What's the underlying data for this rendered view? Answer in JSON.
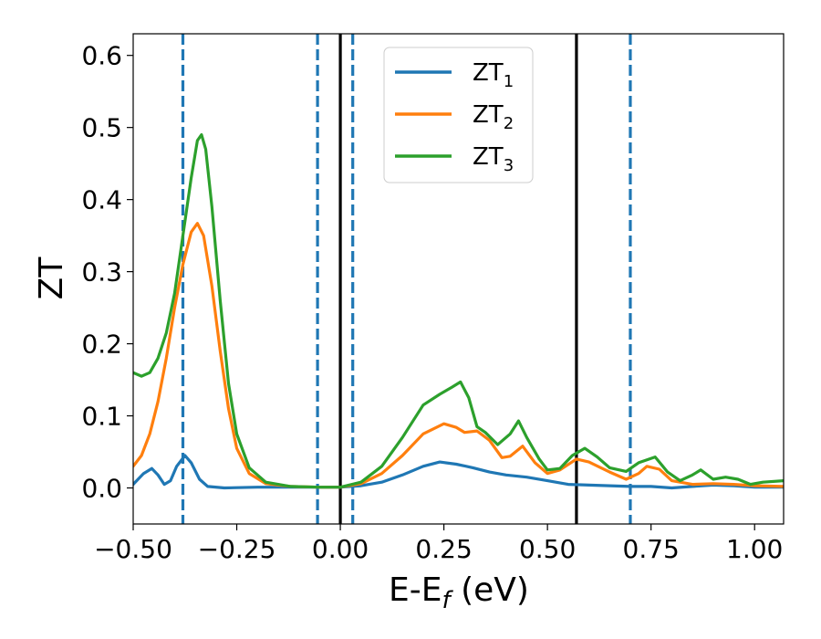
{
  "chart_data": {
    "type": "line",
    "xlabel": "E-E",
    "xlabel_sub": "f",
    "xlabel_unit": " (eV)",
    "ylabel": "ZT",
    "xlim": [
      -0.5,
      1.07
    ],
    "ylim": [
      -0.05,
      0.63
    ],
    "xticks": [
      -0.5,
      -0.25,
      0.0,
      0.25,
      0.5,
      0.75,
      1.0
    ],
    "xtick_labels": [
      "−0.50",
      "−0.25",
      "0.00",
      "0.25",
      "0.50",
      "0.75",
      "1.00"
    ],
    "yticks": [
      0.0,
      0.1,
      0.2,
      0.3,
      0.4,
      0.5,
      0.6
    ],
    "ytick_labels": [
      "0.0",
      "0.1",
      "0.2",
      "0.3",
      "0.4",
      "0.5",
      "0.6"
    ],
    "grid": false,
    "legend_position": "top-center",
    "vlines": [
      {
        "x": -0.38,
        "style": "dashed",
        "color": "#1f77b4"
      },
      {
        "x": -0.055,
        "style": "dashed",
        "color": "#1f77b4"
      },
      {
        "x": 0.03,
        "style": "dashed",
        "color": "#1f77b4"
      },
      {
        "x": 0.7,
        "style": "dashed",
        "color": "#1f77b4"
      },
      {
        "x": 0.0,
        "style": "solid",
        "color": "#000000"
      },
      {
        "x": 0.57,
        "style": "solid",
        "color": "#000000"
      }
    ],
    "series": [
      {
        "name": "ZT",
        "sub": "1",
        "color": "#1f77b4",
        "points": [
          [
            -0.5,
            0.005
          ],
          [
            -0.475,
            0.02
          ],
          [
            -0.455,
            0.027
          ],
          [
            -0.44,
            0.018
          ],
          [
            -0.425,
            0.005
          ],
          [
            -0.41,
            0.01
          ],
          [
            -0.395,
            0.03
          ],
          [
            -0.375,
            0.045
          ],
          [
            -0.36,
            0.035
          ],
          [
            -0.34,
            0.012
          ],
          [
            -0.32,
            0.002
          ],
          [
            -0.28,
            0.0
          ],
          [
            -0.2,
            0.001
          ],
          [
            -0.1,
            0.001
          ],
          [
            0.0,
            0.001
          ],
          [
            0.05,
            0.003
          ],
          [
            0.1,
            0.008
          ],
          [
            0.15,
            0.018
          ],
          [
            0.2,
            0.03
          ],
          [
            0.24,
            0.036
          ],
          [
            0.28,
            0.033
          ],
          [
            0.32,
            0.028
          ],
          [
            0.36,
            0.022
          ],
          [
            0.4,
            0.018
          ],
          [
            0.45,
            0.015
          ],
          [
            0.5,
            0.01
          ],
          [
            0.55,
            0.005
          ],
          [
            0.6,
            0.004
          ],
          [
            0.65,
            0.003
          ],
          [
            0.7,
            0.002
          ],
          [
            0.75,
            0.002
          ],
          [
            0.8,
            0.0
          ],
          [
            0.85,
            0.002
          ],
          [
            0.9,
            0.004
          ],
          [
            0.95,
            0.003
          ],
          [
            1.0,
            0.001
          ],
          [
            1.07,
            0.001
          ]
        ]
      },
      {
        "name": "ZT",
        "sub": "2",
        "color": "#ff7f0e",
        "points": [
          [
            -0.5,
            0.03
          ],
          [
            -0.48,
            0.045
          ],
          [
            -0.46,
            0.075
          ],
          [
            -0.44,
            0.12
          ],
          [
            -0.42,
            0.18
          ],
          [
            -0.4,
            0.25
          ],
          [
            -0.38,
            0.31
          ],
          [
            -0.36,
            0.355
          ],
          [
            -0.345,
            0.367
          ],
          [
            -0.33,
            0.35
          ],
          [
            -0.31,
            0.28
          ],
          [
            -0.29,
            0.19
          ],
          [
            -0.27,
            0.11
          ],
          [
            -0.25,
            0.055
          ],
          [
            -0.22,
            0.02
          ],
          [
            -0.18,
            0.006
          ],
          [
            -0.12,
            0.002
          ],
          [
            -0.05,
            0.001
          ],
          [
            0.0,
            0.001
          ],
          [
            0.05,
            0.006
          ],
          [
            0.1,
            0.02
          ],
          [
            0.15,
            0.045
          ],
          [
            0.2,
            0.075
          ],
          [
            0.25,
            0.089
          ],
          [
            0.28,
            0.084
          ],
          [
            0.3,
            0.077
          ],
          [
            0.33,
            0.079
          ],
          [
            0.36,
            0.066
          ],
          [
            0.39,
            0.042
          ],
          [
            0.41,
            0.044
          ],
          [
            0.44,
            0.058
          ],
          [
            0.47,
            0.035
          ],
          [
            0.5,
            0.02
          ],
          [
            0.53,
            0.025
          ],
          [
            0.57,
            0.04
          ],
          [
            0.6,
            0.036
          ],
          [
            0.65,
            0.022
          ],
          [
            0.69,
            0.012
          ],
          [
            0.72,
            0.02
          ],
          [
            0.74,
            0.03
          ],
          [
            0.77,
            0.026
          ],
          [
            0.8,
            0.01
          ],
          [
            0.85,
            0.005
          ],
          [
            0.9,
            0.006
          ],
          [
            0.95,
            0.005
          ],
          [
            1.0,
            0.003
          ],
          [
            1.07,
            0.002
          ]
        ]
      },
      {
        "name": "ZT",
        "sub": "3",
        "color": "#2ca02c",
        "points": [
          [
            -0.5,
            0.16
          ],
          [
            -0.48,
            0.155
          ],
          [
            -0.46,
            0.16
          ],
          [
            -0.44,
            0.18
          ],
          [
            -0.42,
            0.215
          ],
          [
            -0.4,
            0.27
          ],
          [
            -0.38,
            0.35
          ],
          [
            -0.36,
            0.43
          ],
          [
            -0.345,
            0.482
          ],
          [
            -0.335,
            0.49
          ],
          [
            -0.325,
            0.47
          ],
          [
            -0.31,
            0.39
          ],
          [
            -0.29,
            0.26
          ],
          [
            -0.27,
            0.145
          ],
          [
            -0.25,
            0.075
          ],
          [
            -0.22,
            0.028
          ],
          [
            -0.18,
            0.008
          ],
          [
            -0.12,
            0.002
          ],
          [
            -0.05,
            0.001
          ],
          [
            0.0,
            0.001
          ],
          [
            0.05,
            0.008
          ],
          [
            0.1,
            0.03
          ],
          [
            0.15,
            0.07
          ],
          [
            0.2,
            0.115
          ],
          [
            0.24,
            0.13
          ],
          [
            0.27,
            0.14
          ],
          [
            0.29,
            0.147
          ],
          [
            0.31,
            0.125
          ],
          [
            0.33,
            0.085
          ],
          [
            0.35,
            0.077
          ],
          [
            0.38,
            0.06
          ],
          [
            0.41,
            0.075
          ],
          [
            0.43,
            0.093
          ],
          [
            0.45,
            0.07
          ],
          [
            0.48,
            0.04
          ],
          [
            0.5,
            0.025
          ],
          [
            0.53,
            0.027
          ],
          [
            0.56,
            0.045
          ],
          [
            0.59,
            0.055
          ],
          [
            0.62,
            0.043
          ],
          [
            0.65,
            0.028
          ],
          [
            0.69,
            0.023
          ],
          [
            0.72,
            0.035
          ],
          [
            0.76,
            0.043
          ],
          [
            0.79,
            0.022
          ],
          [
            0.82,
            0.01
          ],
          [
            0.85,
            0.018
          ],
          [
            0.87,
            0.025
          ],
          [
            0.9,
            0.012
          ],
          [
            0.93,
            0.015
          ],
          [
            0.96,
            0.012
          ],
          [
            0.99,
            0.005
          ],
          [
            1.02,
            0.008
          ],
          [
            1.07,
            0.01
          ]
        ]
      }
    ]
  }
}
